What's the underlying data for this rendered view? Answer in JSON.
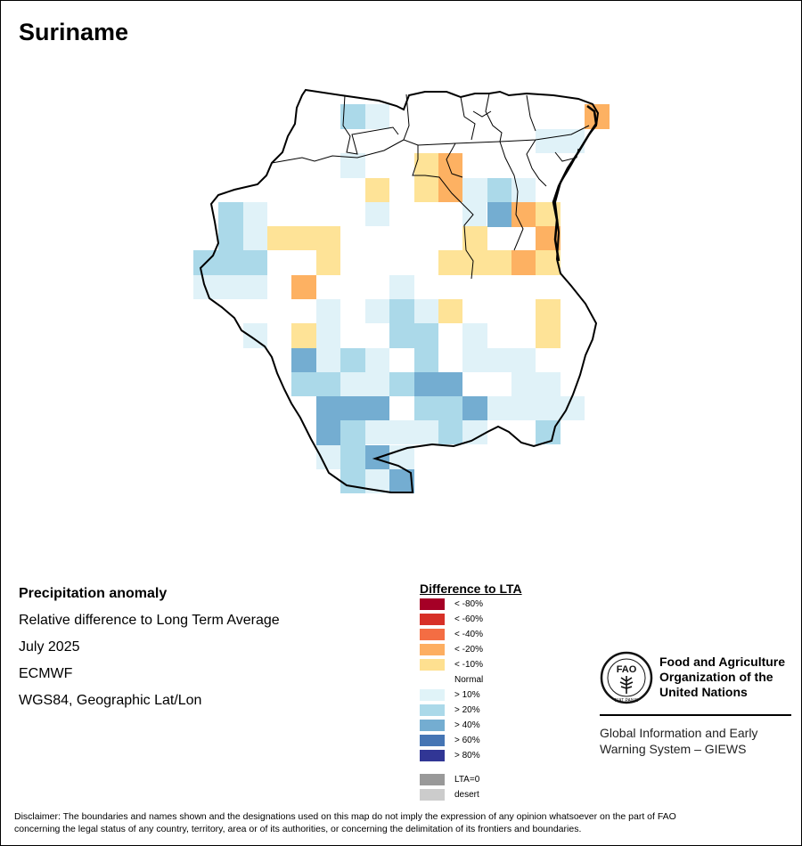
{
  "map": {
    "title": "Suriname",
    "colors": {
      "lt10": "#fee397",
      "lt20": "#fdb162",
      "gt10": "#e0f2f8",
      "gt20": "#abd9e9",
      "gt40": "#74add1",
      "outline": "#000000"
    }
  },
  "info": {
    "heading": "Precipitation anomaly",
    "subtitle": "Relative difference to Long Term Average",
    "period": "July 2025",
    "source": "ECMWF",
    "projection": "WGS84, Geographic Lat/Lon"
  },
  "legend": {
    "title": "Difference to LTA",
    "classes": [
      {
        "label": "< -80%",
        "color": "#a50026"
      },
      {
        "label": "< -60%",
        "color": "#d73027"
      },
      {
        "label": "< -40%",
        "color": "#f46d43"
      },
      {
        "label": "< -20%",
        "color": "#fdae61"
      },
      {
        "label": "< -10%",
        "color": "#fee090"
      },
      {
        "label": "Normal",
        "color": "#ffffff"
      },
      {
        "label": "> 10%",
        "color": "#e0f3f8"
      },
      {
        "label": "> 20%",
        "color": "#abd9e9"
      },
      {
        "label": "> 40%",
        "color": "#74add1"
      },
      {
        "label": "> 60%",
        "color": "#4575b4"
      },
      {
        "label": "> 80%",
        "color": "#313695"
      }
    ],
    "extra": [
      {
        "label": "LTA=0",
        "color": "#999999"
      },
      {
        "label": "desert",
        "color": "#cccccc"
      }
    ]
  },
  "organization": {
    "logo_text": "FAO",
    "logo_motto": "FIAT PANIS",
    "name_lines": [
      "Food and Agriculture",
      "Organization of the",
      "United Nations"
    ],
    "giews_lines": [
      "Global Information and Early",
      "Warning System – GIEWS"
    ]
  },
  "disclaimer": {
    "line1": "Disclaimer: The boundaries and names shown and the designations used on this map do not imply the expression of any opinion whatsoever on the part of FAO",
    "line2": "concerning the legal status of any country, territory, area or of its authorities, or concerning the delimitation of its frontiers and boundaries."
  }
}
